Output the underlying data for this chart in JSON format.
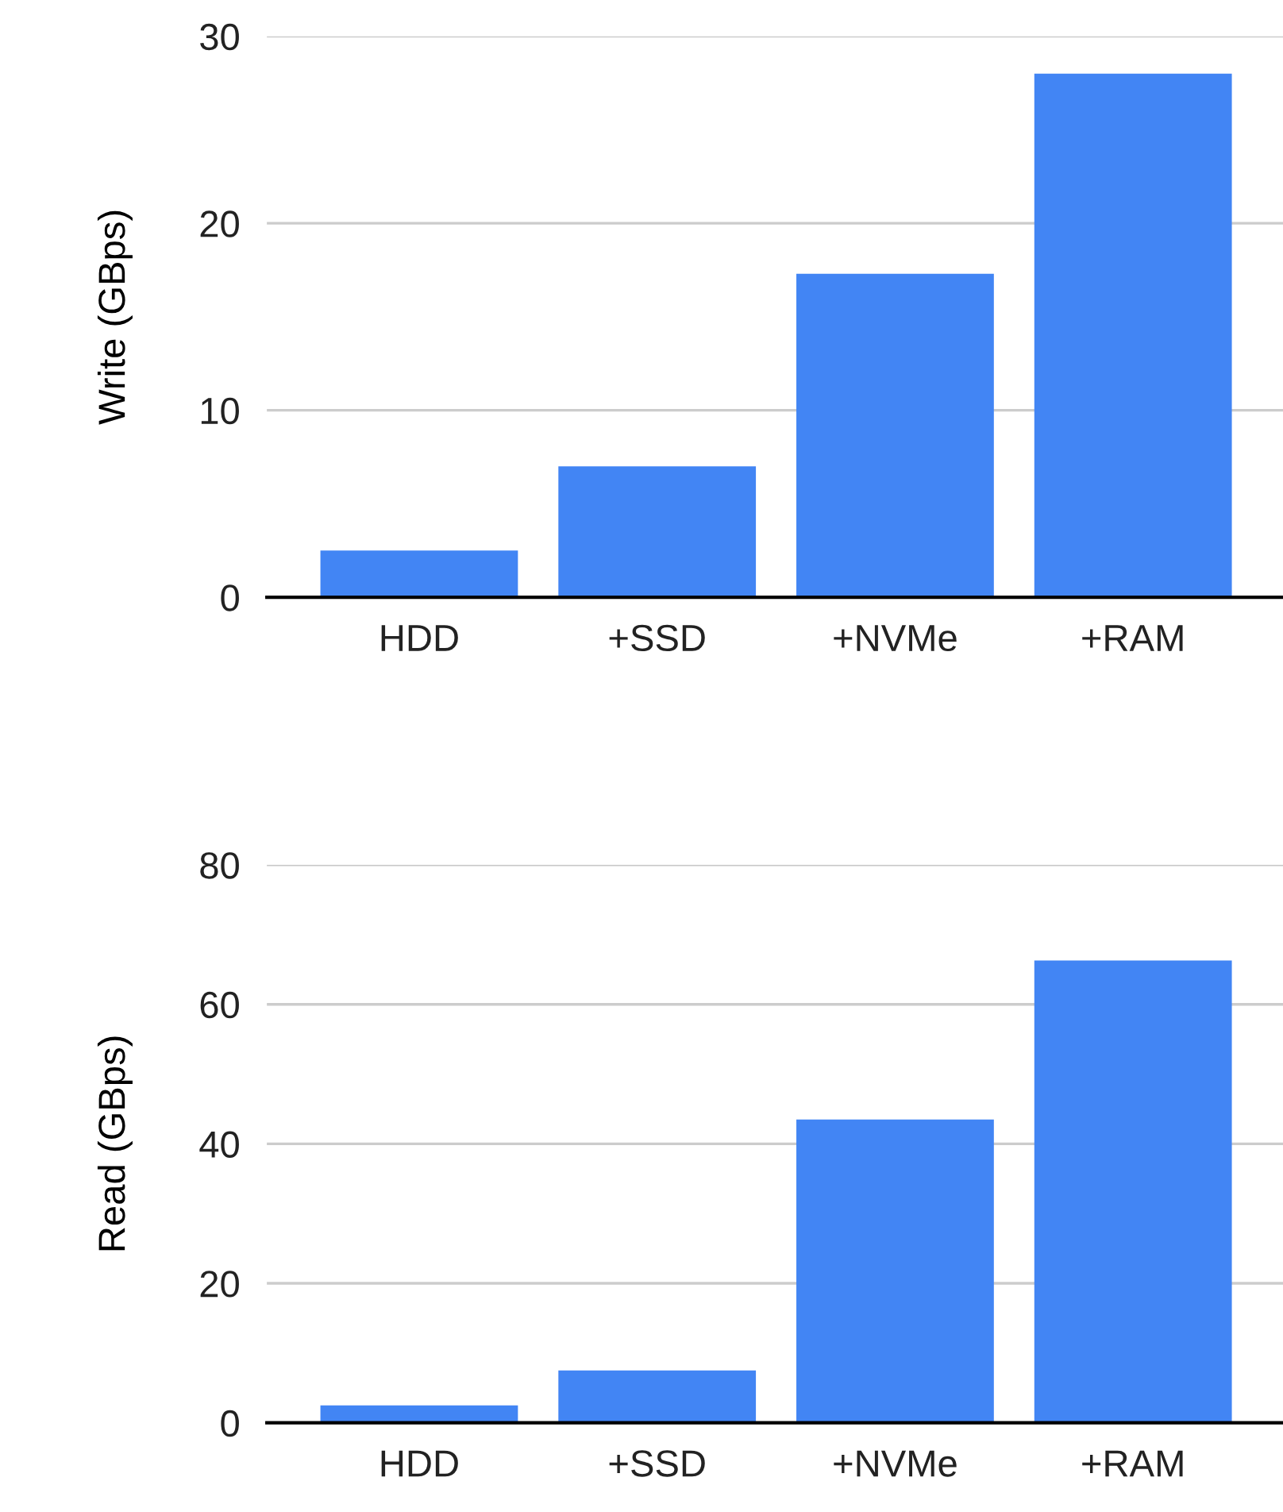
{
  "chart_data": [
    {
      "type": "bar",
      "ylabel": "Write (GBps)",
      "categories": [
        "HDD",
        "+SSD",
        "+NVMe",
        "+RAM"
      ],
      "series": [
        {
          "color": "#4285f4",
          "values": [
            2.5,
            7.0,
            17.3,
            28.0
          ]
        }
      ],
      "ylim": [
        0,
        30
      ],
      "yticks": [
        0,
        10,
        20,
        30
      ],
      "grid": "y",
      "legend": false
    },
    {
      "type": "bar",
      "ylabel": "Read (GBps)",
      "categories": [
        "HDD",
        "+SSD",
        "+NVMe",
        "+RAM"
      ],
      "series": [
        {
          "color": "#4285f4",
          "values": [
            2.5,
            7.5,
            43.5,
            66.3
          ]
        }
      ],
      "ylim": [
        0,
        80
      ],
      "yticks": [
        0,
        20,
        40,
        60,
        80
      ],
      "grid": "y",
      "legend": false
    }
  ]
}
